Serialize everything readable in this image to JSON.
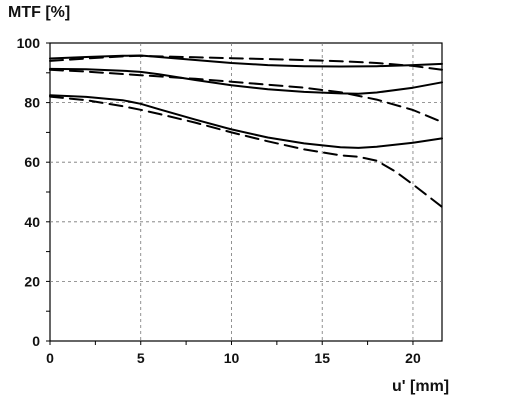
{
  "chart_data": {
    "type": "line",
    "ylabel": "MTF [%]",
    "xlabel": "u' [mm]",
    "xlim": [
      0,
      21.6
    ],
    "ylim": [
      0,
      100
    ],
    "xticks": [
      0,
      5,
      10,
      15,
      20
    ],
    "yticks": [
      0,
      20,
      40,
      60,
      80,
      100
    ],
    "grid": true,
    "series": [
      {
        "style": "solid",
        "x": [
          0,
          2,
          4,
          5,
          6,
          8,
          10,
          12,
          14,
          16,
          18,
          20,
          21.6
        ],
        "y": [
          94.8,
          95.3,
          95.7,
          95.8,
          95.3,
          94.3,
          93.3,
          92.6,
          92.2,
          92.1,
          92.2,
          92.6,
          93.0
        ]
      },
      {
        "style": "dashed",
        "x": [
          0,
          2,
          4,
          5,
          6,
          8,
          10,
          12,
          14,
          16,
          18,
          20,
          21.6
        ],
        "y": [
          94.0,
          94.8,
          95.5,
          95.7,
          95.5,
          95.2,
          94.9,
          94.6,
          94.3,
          93.9,
          93.3,
          92.3,
          91.0
        ]
      },
      {
        "style": "solid",
        "x": [
          0,
          2,
          4,
          5,
          6,
          8,
          10,
          12,
          14,
          16,
          17,
          18,
          20,
          21.6
        ],
        "y": [
          91.3,
          91.2,
          90.7,
          90.3,
          89.5,
          87.6,
          85.8,
          84.5,
          83.6,
          83.1,
          83.0,
          83.4,
          85.0,
          86.8
        ]
      },
      {
        "style": "dashed",
        "x": [
          0,
          2,
          4,
          5,
          6,
          8,
          10,
          12,
          14,
          16,
          18,
          20,
          21.6
        ],
        "y": [
          91.0,
          90.4,
          89.6,
          89.2,
          88.8,
          88.0,
          87.0,
          86.0,
          85.0,
          83.5,
          81.0,
          77.5,
          73.5
        ]
      },
      {
        "style": "solid",
        "x": [
          0,
          2,
          4,
          5,
          6,
          8,
          10,
          12,
          14,
          16,
          17,
          18,
          20,
          21.6
        ],
        "y": [
          82.5,
          81.9,
          80.8,
          79.6,
          77.8,
          74.3,
          71.0,
          68.3,
          66.3,
          65.0,
          64.8,
          65.2,
          66.5,
          68.0
        ]
      },
      {
        "style": "dashed",
        "x": [
          0,
          2,
          4,
          5,
          6,
          8,
          10,
          12,
          14,
          16,
          17,
          18,
          19,
          20,
          21.6
        ],
        "y": [
          82.0,
          80.8,
          78.8,
          77.6,
          76.2,
          73.3,
          70.0,
          67.0,
          64.3,
          62.3,
          61.8,
          60.5,
          57.0,
          52.5,
          45.0
        ]
      }
    ]
  }
}
